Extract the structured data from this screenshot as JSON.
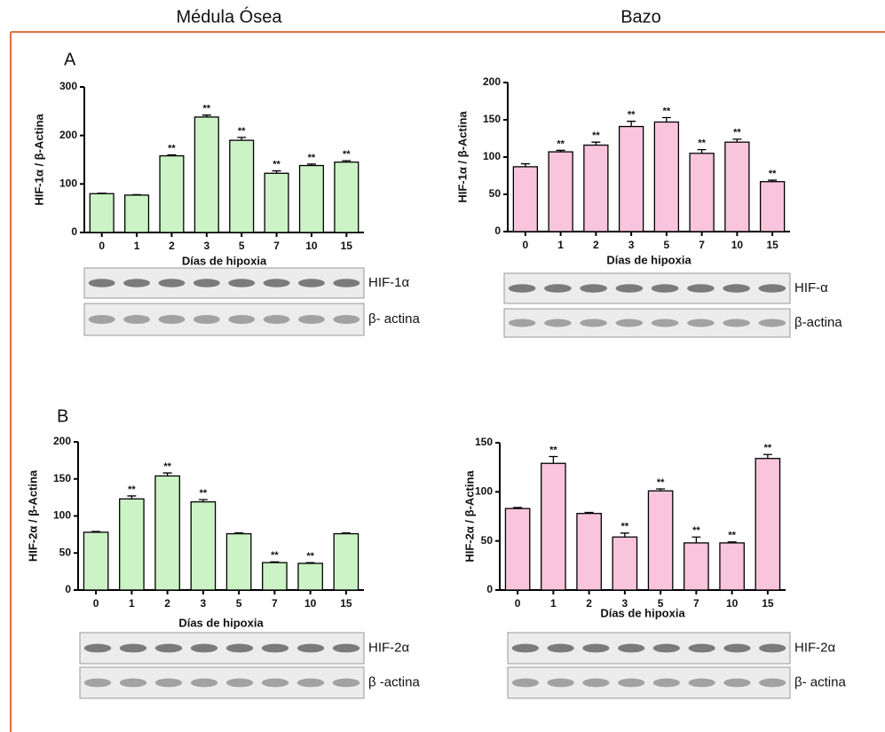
{
  "columns": [
    "Médula Ósea",
    "Bazo"
  ],
  "panels": [
    "A",
    "B"
  ],
  "chart_data": [
    {
      "type": "bar",
      "ylabel": "HIF-1α / β-Actina",
      "xlabel": "Días de hipoxia",
      "categories": [
        "0",
        "1",
        "2",
        "3",
        "5",
        "7",
        "10",
        "15"
      ],
      "values": [
        80,
        77,
        158,
        238,
        190,
        122,
        138,
        145
      ],
      "errors": [
        1,
        1,
        2,
        4,
        6,
        5,
        3,
        3
      ],
      "markers": [
        null,
        null,
        "**",
        "**",
        "**",
        "**",
        "**",
        "**"
      ],
      "color": "#ccf3c6",
      "ylim": [
        0,
        300
      ],
      "yticks": [
        0,
        100,
        200,
        300
      ],
      "blot_labels": [
        "HIF-1α",
        "β- actina"
      ]
    },
    {
      "type": "bar",
      "ylabel": "HIF-1α / β-Actina",
      "xlabel": "Días de hipoxia",
      "categories": [
        "0",
        "1",
        "2",
        "3",
        "5",
        "7",
        "10",
        "15"
      ],
      "values": [
        87,
        107,
        116,
        141,
        147,
        105,
        120,
        67
      ],
      "errors": [
        4,
        2,
        4,
        7,
        6,
        5,
        4,
        2
      ],
      "markers": [
        null,
        "**",
        "**",
        "**",
        "**",
        "**",
        "**",
        "**"
      ],
      "color": "#f9c5dc",
      "ylim": [
        0,
        200
      ],
      "yticks": [
        0,
        50,
        100,
        150,
        200
      ],
      "blot_labels": [
        "HIF-α",
        "β-actina"
      ]
    },
    {
      "type": "bar",
      "ylabel": "HIF-2α / β-Actina",
      "xlabel": "Días de hipoxia",
      "categories": [
        "0",
        "1",
        "2",
        "3",
        "5",
        "7",
        "10",
        "15"
      ],
      "values": [
        78,
        123,
        154,
        119,
        76,
        37,
        36,
        76
      ],
      "errors": [
        1,
        4,
        4,
        3,
        1,
        1,
        1,
        1
      ],
      "markers": [
        null,
        "**",
        "**",
        "**",
        null,
        "**",
        "**",
        null
      ],
      "color": "#ccf3c6",
      "ylim": [
        0,
        200
      ],
      "yticks": [
        0,
        50,
        100,
        150,
        200
      ],
      "blot_labels": [
        "HIF-2α",
        "β -actina"
      ]
    },
    {
      "type": "bar",
      "ylabel": "HIF-2α / β-Actina",
      "xlabel": "Días de hipoxia",
      "categories": [
        "0",
        "1",
        "2",
        "3",
        "5",
        "7",
        "10",
        "15"
      ],
      "values": [
        83,
        129,
        78,
        54,
        101,
        48,
        48,
        134
      ],
      "errors": [
        1,
        7,
        1,
        4,
        2,
        6,
        1,
        4
      ],
      "markers": [
        null,
        "**",
        null,
        "**",
        "**",
        "**",
        "**",
        "**"
      ],
      "color": "#f9c5dc",
      "ylim": [
        0,
        150
      ],
      "yticks": [
        0,
        50,
        100,
        150
      ],
      "blot_labels": [
        "HIF-2α",
        "β- actina"
      ]
    }
  ]
}
